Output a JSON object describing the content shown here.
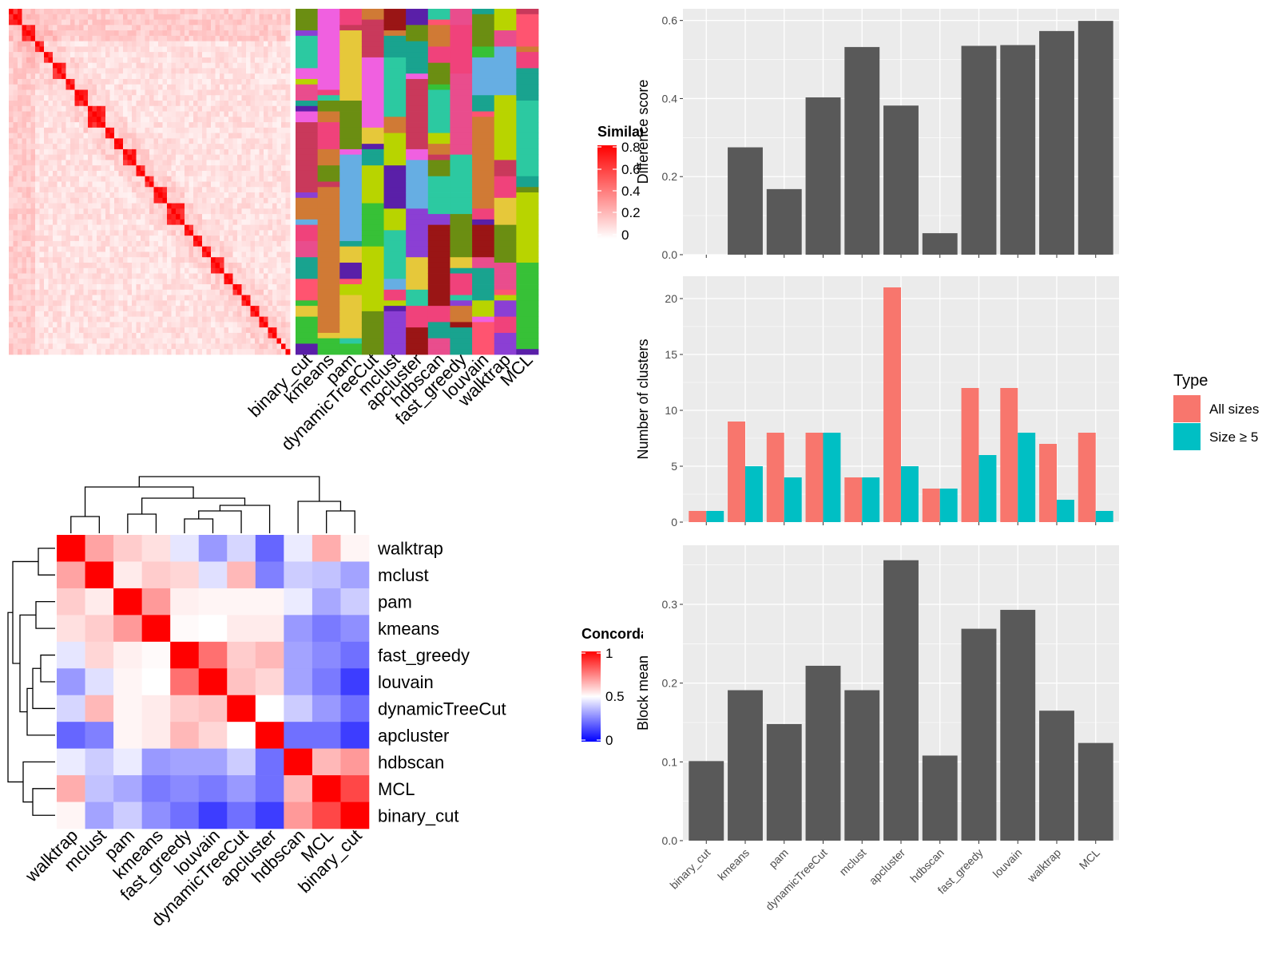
{
  "colors": {
    "panel_bg": "#ebebeb",
    "grid": "#ffffff",
    "bar_dark": "#595959",
    "all_sizes": "#f8766d",
    "size_ge5": "#00bfc4",
    "similarity_high": "#ff0000",
    "concordance_high": "#ff0000",
    "concordance_mid": "#ffffff",
    "concordance_low": "#0000ff"
  },
  "similarity_legend": {
    "title": "Similarity",
    "ticks": [
      "0.8",
      "0.6",
      "0.4",
      "0.2",
      "0"
    ]
  },
  "concordance_legend": {
    "title": "Concordance",
    "ticks": [
      "1",
      "0.5",
      "0"
    ]
  },
  "annotation_columns": [
    "binary_cut",
    "kmeans",
    "pam",
    "dynamicTreeCut",
    "mclust",
    "apcluster",
    "hdbscan",
    "fast_greedy",
    "louvain",
    "walktrap",
    "MCL"
  ],
  "heatmap_rows": [
    "walktrap",
    "mclust",
    "pam",
    "kmeans",
    "fast_greedy",
    "louvain",
    "dynamicTreeCut",
    "apcluster",
    "hdbscan",
    "MCL",
    "binary_cut"
  ],
  "heatmap_cols": [
    "walktrap",
    "mclust",
    "pam",
    "kmeans",
    "fast_greedy",
    "louvain",
    "dynamicTreeCut",
    "apcluster",
    "hdbscan",
    "MCL",
    "binary_cut"
  ],
  "chart_data": [
    {
      "type": "bar",
      "categories": [
        "binary_cut",
        "kmeans",
        "pam",
        "dynamicTreeCut",
        "mclust",
        "apcluster",
        "hdbscan",
        "fast_greedy",
        "louvain",
        "walktrap",
        "MCL"
      ],
      "values": [
        0,
        0.275,
        0.168,
        0.403,
        0.532,
        0.382,
        0.055,
        0.535,
        0.537,
        0.573,
        0.599
      ],
      "title": "",
      "xlabel": "",
      "ylabel": "Difference score",
      "ylim": [
        0,
        0.63
      ],
      "yticks": [
        "0.0",
        "0.2",
        "0.4",
        "0.6"
      ]
    },
    {
      "type": "bar",
      "categories": [
        "binary_cut",
        "kmeans",
        "pam",
        "dynamicTreeCut",
        "mclust",
        "apcluster",
        "hdbscan",
        "fast_greedy",
        "louvain",
        "walktrap",
        "MCL"
      ],
      "series": [
        {
          "name": "All sizes",
          "values": [
            1,
            9,
            8,
            8,
            4,
            21,
            3,
            12,
            12,
            7,
            8
          ]
        },
        {
          "name": "Size ≥ 5",
          "values": [
            1,
            5,
            4,
            8,
            4,
            5,
            3,
            6,
            8,
            2,
            1
          ]
        }
      ],
      "title": "",
      "xlabel": "",
      "ylabel": "Number of clusters",
      "ylim": [
        0,
        22
      ],
      "yticks": [
        "0",
        "5",
        "10",
        "15",
        "20"
      ],
      "legend": {
        "title": "Type",
        "position": "right"
      }
    },
    {
      "type": "bar",
      "categories": [
        "binary_cut",
        "kmeans",
        "pam",
        "dynamicTreeCut",
        "mclust",
        "apcluster",
        "hdbscan",
        "fast_greedy",
        "louvain",
        "walktrap",
        "MCL"
      ],
      "values": [
        0.101,
        0.191,
        0.148,
        0.222,
        0.191,
        0.356,
        0.108,
        0.269,
        0.293,
        0.165,
        0.124
      ],
      "title": "",
      "xlabel": "",
      "ylabel": "Block mean",
      "ylim": [
        0,
        0.375
      ],
      "yticks": [
        "0.0",
        "0.1",
        "0.2",
        "0.3"
      ]
    },
    {
      "type": "heatmap",
      "title": "",
      "rows": [
        "walktrap",
        "mclust",
        "pam",
        "kmeans",
        "fast_greedy",
        "louvain",
        "dynamicTreeCut",
        "apcluster",
        "hdbscan",
        "MCL",
        "binary_cut"
      ],
      "cols": [
        "walktrap",
        "mclust",
        "pam",
        "kmeans",
        "fast_greedy",
        "louvain",
        "dynamicTreeCut",
        "apcluster",
        "hdbscan",
        "MCL",
        "binary_cut"
      ],
      "values": [
        [
          1.0,
          0.68,
          0.6,
          0.56,
          0.45,
          0.3,
          0.42,
          0.2,
          0.46,
          0.66,
          0.52
        ],
        [
          0.68,
          1.0,
          0.54,
          0.6,
          0.58,
          0.44,
          0.64,
          0.25,
          0.4,
          0.38,
          0.32
        ],
        [
          0.6,
          0.54,
          1.0,
          0.7,
          0.53,
          0.52,
          0.52,
          0.52,
          0.46,
          0.33,
          0.4
        ],
        [
          0.56,
          0.6,
          0.7,
          1.0,
          0.51,
          0.5,
          0.54,
          0.54,
          0.3,
          0.24,
          0.28
        ],
        [
          0.45,
          0.58,
          0.53,
          0.51,
          1.0,
          0.78,
          0.6,
          0.64,
          0.32,
          0.27,
          0.22
        ],
        [
          0.3,
          0.44,
          0.52,
          0.5,
          0.78,
          1.0,
          0.62,
          0.58,
          0.32,
          0.24,
          0.12
        ],
        [
          0.42,
          0.64,
          0.52,
          0.54,
          0.6,
          0.62,
          1.0,
          0.5,
          0.4,
          0.3,
          0.22
        ],
        [
          0.2,
          0.25,
          0.52,
          0.54,
          0.64,
          0.58,
          0.5,
          1.0,
          0.22,
          0.22,
          0.12
        ],
        [
          0.46,
          0.4,
          0.46,
          0.3,
          0.32,
          0.32,
          0.4,
          0.22,
          1.0,
          0.64,
          0.7
        ],
        [
          0.66,
          0.38,
          0.33,
          0.24,
          0.27,
          0.24,
          0.3,
          0.22,
          0.64,
          1.0,
          0.86
        ],
        [
          0.52,
          0.32,
          0.4,
          0.28,
          0.22,
          0.12,
          0.22,
          0.12,
          0.7,
          0.86,
          1.0
        ]
      ],
      "legend_title": "Concordance",
      "range": [
        0,
        1
      ]
    }
  ]
}
